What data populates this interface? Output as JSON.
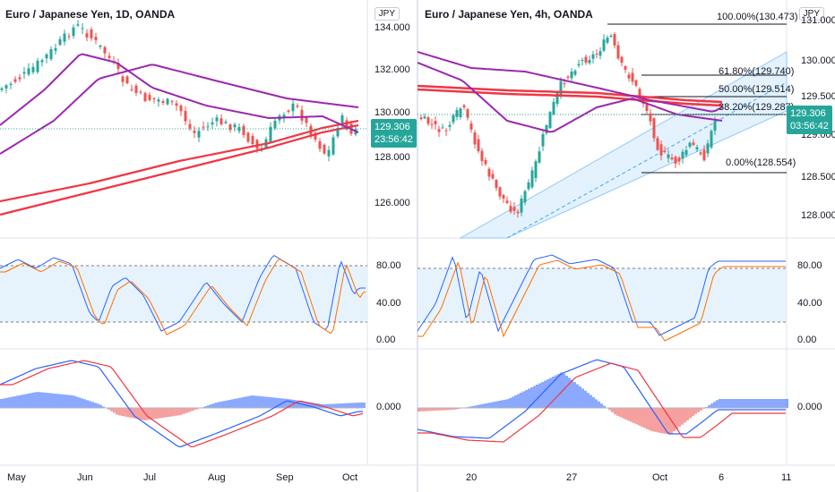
{
  "left": {
    "title": "Euro / Japanese Yen, 1D, OANDA",
    "currency": "JPY",
    "price_axis": [
      "134.000",
      "132.000",
      "130.000",
      "128.000",
      "126.000"
    ],
    "price_tag": {
      "price": "129.306",
      "countdown": "23:56:42"
    },
    "stoch_axis": [
      "80.00",
      "40.00",
      "0.00"
    ],
    "macd_axis": [
      "0.000"
    ],
    "x_axis": [
      "May",
      "Jun",
      "Jul",
      "Aug",
      "Sep",
      "Oct"
    ]
  },
  "right": {
    "title": "Euro / Japanese Yen, 4h, OANDA",
    "currency": "JPY",
    "price_axis": [
      "131.000",
      "130.000",
      "129.500",
      "129.000",
      "128.500",
      "128.000"
    ],
    "price_tag": {
      "price": "129.306",
      "countdown": "03:56:42"
    },
    "fib_levels": [
      "100.00%(130.473)",
      "61.80%(129.740)",
      "50.00%(129.514)",
      "38.20%(129.287)",
      "0.00%(128.554)"
    ],
    "stoch_axis": [
      "80.00",
      "40.00",
      "0.00"
    ],
    "macd_axis": [
      "0.000"
    ],
    "x_axis": [
      "20",
      "27",
      "Oct",
      "6",
      "11"
    ]
  },
  "colors": {
    "up": "#26a69a",
    "down": "#ef5350",
    "purple": "#9c27b0",
    "red": "#f23645",
    "blue": "#2962ff",
    "orange": "#ff6d00",
    "band": "#e3f2fd",
    "channel": "#90caf9",
    "accent": "#26a69a"
  }
}
